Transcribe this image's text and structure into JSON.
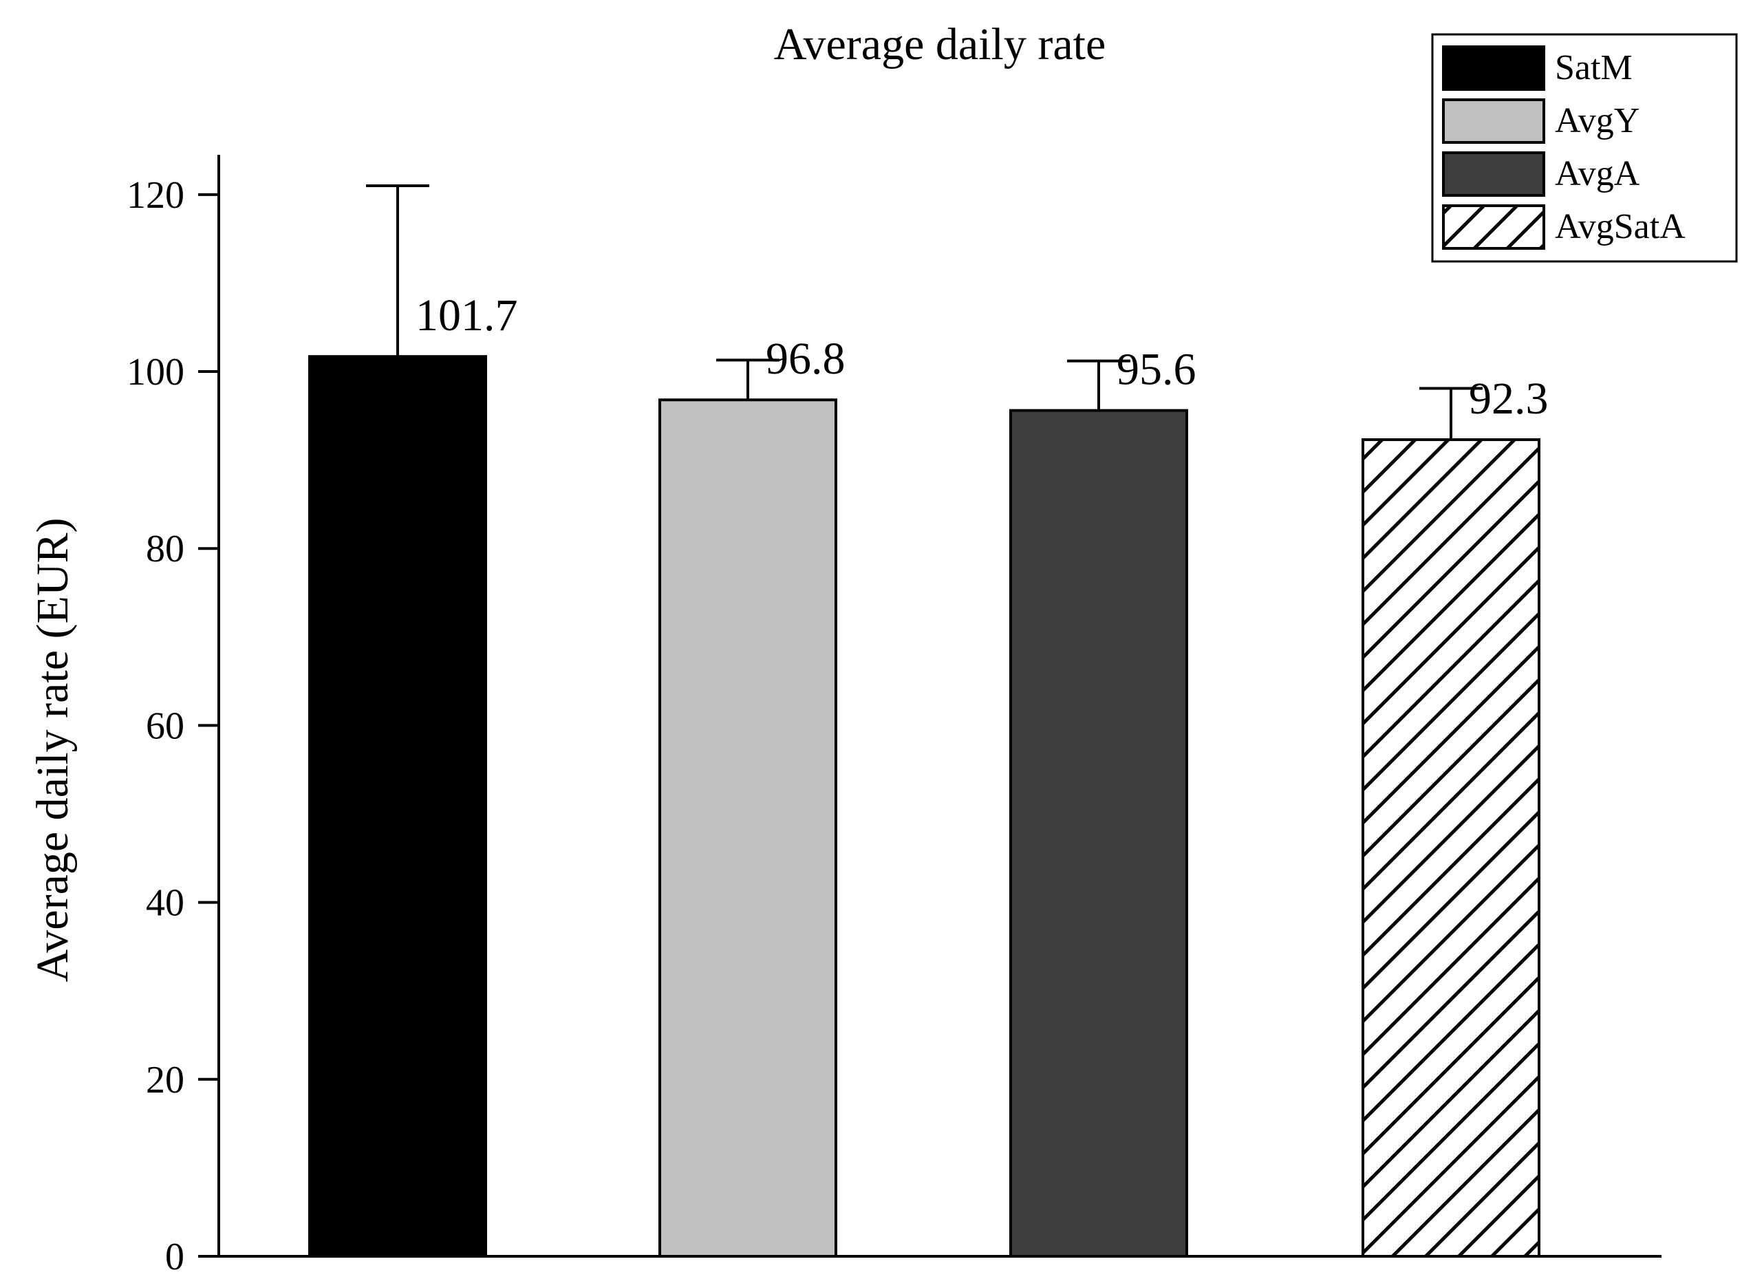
{
  "chart_data": {
    "type": "bar",
    "title": "Average daily rate",
    "xlabel": "",
    "ylabel": "Average daily rate (EUR)",
    "ylim": [
      0,
      120
    ],
    "yticks": [
      0,
      20,
      40,
      60,
      80,
      100,
      120
    ],
    "grid": false,
    "legend_position": "top-right",
    "series": [
      {
        "name": "SatM",
        "value": 101.7,
        "error": 19.3,
        "label": "101.7",
        "fill": "#000000",
        "pattern": "solid"
      },
      {
        "name": "AvgY",
        "value": 96.8,
        "error": 4.5,
        "label": "96.8",
        "fill": "#c0c0c0",
        "pattern": "solid"
      },
      {
        "name": "AvgA",
        "value": 95.6,
        "error": 5.6,
        "label": "95.6",
        "fill": "#3d3d3d",
        "pattern": "solid"
      },
      {
        "name": "AvgSatA",
        "value": 92.3,
        "error": 5.8,
        "label": "92.3",
        "fill": "#ffffff",
        "pattern": "hatched"
      }
    ]
  }
}
